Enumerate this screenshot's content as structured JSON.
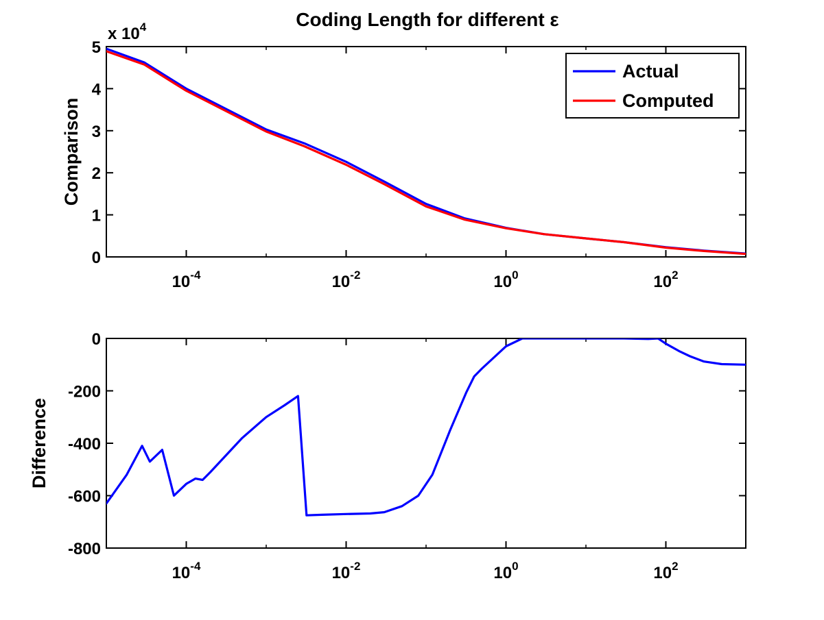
{
  "chart_data": [
    {
      "type": "line",
      "title": "Coding Length for different ε",
      "xlabel": "",
      "ylabel": "Comparison",
      "x_scale": "log",
      "xlim": [
        1e-05,
        1000
      ],
      "ylim": [
        0,
        50000
      ],
      "y_multiplier_label": {
        "prefix": "x 10",
        "exponent": "4"
      },
      "x_ticks": [
        {
          "value": 0.0001,
          "base": "10",
          "exponent": "-4"
        },
        {
          "value": 0.01,
          "base": "10",
          "exponent": "-2"
        },
        {
          "value": 1,
          "base": "10",
          "exponent": "0"
        },
        {
          "value": 100,
          "base": "10",
          "exponent": "2"
        }
      ],
      "y_ticks": [
        {
          "value": 0,
          "label": "0"
        },
        {
          "value": 10000,
          "label": "1"
        },
        {
          "value": 20000,
          "label": "2"
        },
        {
          "value": 30000,
          "label": "3"
        },
        {
          "value": 40000,
          "label": "4"
        },
        {
          "value": 50000,
          "label": "5"
        }
      ],
      "legend": {
        "position": "top-right"
      },
      "series": [
        {
          "name": "Actual",
          "color": "#0000ff",
          "x": [
            1e-05,
            3e-05,
            0.0001,
            0.001,
            0.003,
            0.01,
            0.03,
            0.1,
            0.3,
            1,
            3,
            10,
            30,
            100,
            300,
            1000
          ],
          "y": [
            49500,
            46200,
            40000,
            30300,
            27000,
            22600,
            17900,
            12600,
            9200,
            6900,
            5400,
            4400,
            3500,
            2300,
            1500,
            800
          ]
        },
        {
          "name": "Computed",
          "color": "#ff0000",
          "x": [
            1e-05,
            3e-05,
            0.0001,
            0.001,
            0.003,
            0.01,
            0.03,
            0.1,
            0.3,
            1,
            3,
            10,
            30,
            100,
            300,
            1000
          ],
          "y": [
            48900,
            45700,
            39500,
            29800,
            26300,
            21900,
            17300,
            12000,
            8900,
            6800,
            5400,
            4400,
            3500,
            2200,
            1400,
            700
          ]
        }
      ]
    },
    {
      "type": "line",
      "title": "",
      "xlabel": "",
      "ylabel": "Difference",
      "x_scale": "log",
      "xlim": [
        1e-05,
        1000
      ],
      "ylim": [
        -800,
        0
      ],
      "x_ticks": [
        {
          "value": 0.0001,
          "base": "10",
          "exponent": "-4"
        },
        {
          "value": 0.01,
          "base": "10",
          "exponent": "-2"
        },
        {
          "value": 1,
          "base": "10",
          "exponent": "0"
        },
        {
          "value": 100,
          "base": "10",
          "exponent": "2"
        }
      ],
      "y_ticks": [
        {
          "value": 0,
          "label": "0"
        },
        {
          "value": -200,
          "label": "-200"
        },
        {
          "value": -400,
          "label": "-400"
        },
        {
          "value": -600,
          "label": "-600"
        },
        {
          "value": -800,
          "label": "-800"
        }
      ],
      "series": [
        {
          "name": "Difference",
          "color": "#0000ff",
          "x": [
            1e-05,
            1.8e-05,
            2.8e-05,
            3.5e-05,
            5e-05,
            7e-05,
            0.0001,
            0.00013,
            0.00016,
            0.0002,
            0.0005,
            0.001,
            0.0017,
            0.0025,
            0.0032,
            0.005,
            0.01,
            0.02,
            0.03,
            0.05,
            0.08,
            0.12,
            0.2,
            0.32,
            0.4,
            0.5,
            1.0,
            1.6,
            3,
            10,
            30,
            60,
            80,
            100,
            150,
            200,
            300,
            500,
            1000
          ],
          "y": [
            -630,
            -520,
            -410,
            -470,
            -425,
            -600,
            -555,
            -535,
            -540,
            -510,
            -380,
            -300,
            -255,
            -220,
            -675,
            -673,
            -670,
            -668,
            -663,
            -640,
            -600,
            -520,
            -350,
            -205,
            -145,
            -115,
            -30,
            0,
            0,
            0,
            0,
            -2,
            0,
            -20,
            -50,
            -68,
            -88,
            -98,
            -100
          ]
        }
      ]
    }
  ]
}
